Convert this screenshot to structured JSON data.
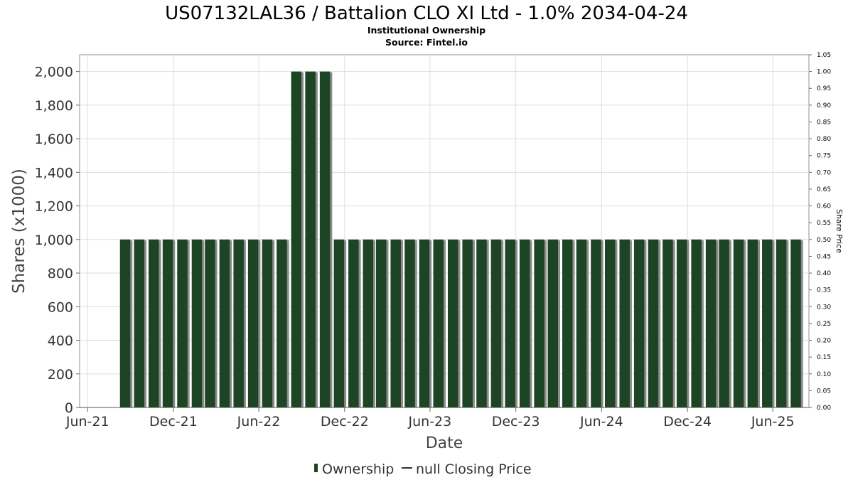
{
  "chart_data": {
    "type": "bar",
    "title": "US07132LAL36 / Battalion CLO XI Ltd - 1.0% 2034-04-24",
    "subtitle": "Institutional Ownership",
    "source": "Source: Fintel.io",
    "xlabel": "Date",
    "ylabel": "Shares (x1000)",
    "y2label": "Share Price",
    "ylim": [
      0,
      2100
    ],
    "y2lim": [
      0,
      1.05
    ],
    "yticks": [
      0,
      200,
      400,
      600,
      800,
      1000,
      1200,
      1400,
      1600,
      1800,
      2000
    ],
    "ytick_labels": [
      "0",
      "200",
      "400",
      "600",
      "800",
      "1,000",
      "1,200",
      "1,400",
      "1,600",
      "1,800",
      "2,000"
    ],
    "y2ticks": [
      "0.00",
      "0.05",
      "0.10",
      "0.15",
      "0.20",
      "0.25",
      "0.30",
      "0.35",
      "0.40",
      "0.45",
      "0.50",
      "0.55",
      "0.60",
      "0.65",
      "0.70",
      "0.75",
      "0.80",
      "0.85",
      "0.90",
      "0.95",
      "1.00",
      "1.05"
    ],
    "x_range": [
      "2021-05-15",
      "2025-08-17"
    ],
    "xticks": [
      {
        "label": "Jun-21",
        "date": "2021-06-01"
      },
      {
        "label": "Dec-21",
        "date": "2021-12-01"
      },
      {
        "label": "Jun-22",
        "date": "2022-06-01"
      },
      {
        "label": "Dec-22",
        "date": "2022-12-01"
      },
      {
        "label": "Jun-23",
        "date": "2023-06-01"
      },
      {
        "label": "Dec-23",
        "date": "2023-12-01"
      },
      {
        "label": "Jun-24",
        "date": "2024-06-01"
      },
      {
        "label": "Dec-24",
        "date": "2024-12-01"
      },
      {
        "label": "Jun-25",
        "date": "2025-06-01"
      }
    ],
    "grid": true,
    "legend_position": "bottom",
    "series": [
      {
        "name": "Ownership",
        "color": "#1e4426",
        "x": [
          "2021-08-31",
          "2021-09-30",
          "2021-10-31",
          "2021-11-30",
          "2021-12-31",
          "2022-01-31",
          "2022-02-28",
          "2022-03-31",
          "2022-04-30",
          "2022-05-31",
          "2022-06-30",
          "2022-07-31",
          "2022-08-31",
          "2022-09-30",
          "2022-10-31",
          "2022-11-30",
          "2022-12-31",
          "2023-01-31",
          "2023-02-28",
          "2023-03-31",
          "2023-04-30",
          "2023-05-31",
          "2023-06-30",
          "2023-07-31",
          "2023-08-31",
          "2023-09-30",
          "2023-10-31",
          "2023-11-30",
          "2023-12-31",
          "2024-01-31",
          "2024-02-29",
          "2024-03-31",
          "2024-04-30",
          "2024-05-31",
          "2024-06-30",
          "2024-07-31",
          "2024-08-31",
          "2024-09-30",
          "2024-10-31",
          "2024-11-30",
          "2024-12-31",
          "2025-01-31",
          "2025-02-28",
          "2025-03-31",
          "2025-04-30",
          "2025-05-31",
          "2025-06-30",
          "2025-07-31"
        ],
        "values": [
          1000,
          1000,
          1000,
          1000,
          1000,
          1000,
          1000,
          1000,
          1000,
          1000,
          1000,
          1000,
          2000,
          2000,
          2000,
          1000,
          1000,
          1000,
          1000,
          1000,
          1000,
          1000,
          1000,
          1000,
          1000,
          1000,
          1000,
          1000,
          1000,
          1000,
          1000,
          1000,
          1000,
          1000,
          1000,
          1000,
          1000,
          1000,
          1000,
          1000,
          1000,
          1000,
          1000,
          1000,
          1000,
          1000,
          1000,
          1000
        ]
      },
      {
        "name": "null Closing Price",
        "color": "#333333",
        "values": []
      }
    ]
  }
}
